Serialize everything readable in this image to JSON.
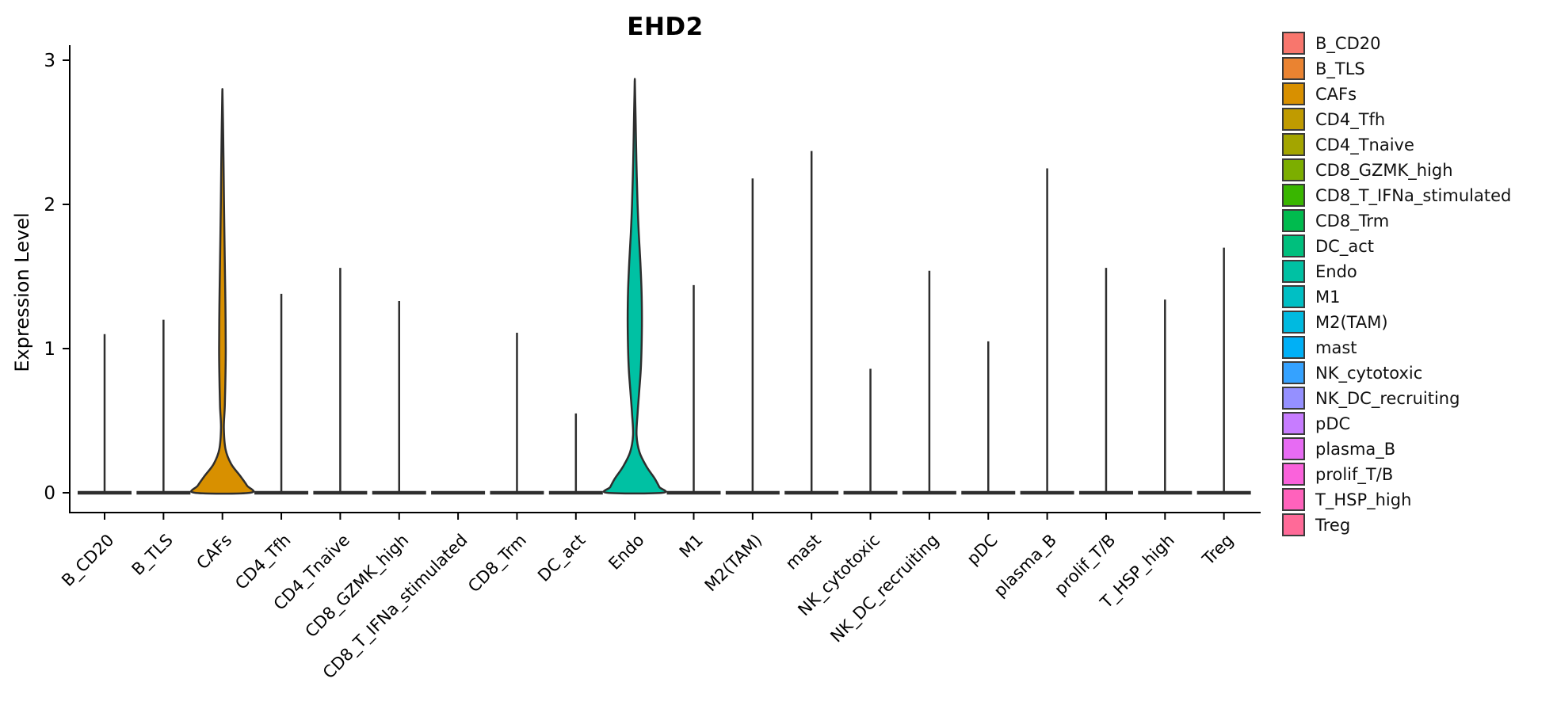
{
  "figure": {
    "title": "EHD2",
    "background": "#ffffff",
    "axis_color": "#000000",
    "violin_stroke_color": "#2e2e2e"
  },
  "chart_data": {
    "type": "violin",
    "title": "EHD2",
    "xlabel": "",
    "ylabel": "Expression Level",
    "ylim": [
      0,
      3
    ],
    "yticks": [
      0,
      1,
      2,
      3
    ],
    "grid": false,
    "legend_position": "right",
    "categories": [
      {
        "name": "B_CD20",
        "color": "#F8766D",
        "max_expression": 1.1,
        "shape": "spike"
      },
      {
        "name": "B_TLS",
        "color": "#EA8331",
        "max_expression": 1.2,
        "shape": "spike"
      },
      {
        "name": "CAFs",
        "color": "#D89000",
        "max_expression": 2.8,
        "shape": "violin",
        "density_profile": [
          [
            2.8,
            0
          ],
          [
            2.55,
            0.8
          ],
          [
            2.3,
            1.4
          ],
          [
            2.0,
            2.0
          ],
          [
            1.6,
            3.0
          ],
          [
            1.3,
            3.8
          ],
          [
            1.0,
            4.2
          ],
          [
            0.8,
            3.8
          ],
          [
            0.6,
            3.0
          ],
          [
            0.45,
            1.8
          ],
          [
            0.3,
            4.0
          ],
          [
            0.2,
            11
          ],
          [
            0.12,
            22
          ],
          [
            0.05,
            31
          ],
          [
            0.0,
            35
          ]
        ]
      },
      {
        "name": "CD4_Tfh",
        "color": "#C09B00",
        "max_expression": 1.38,
        "shape": "spike"
      },
      {
        "name": "CD4_Tnaive",
        "color": "#A3A500",
        "max_expression": 1.56,
        "shape": "spike"
      },
      {
        "name": "CD8_GZMK_high",
        "color": "#7CAE00",
        "max_expression": 1.33,
        "shape": "spike"
      },
      {
        "name": "CD8_T_IFNa_stimulated",
        "color": "#39B600",
        "max_expression": 0.0,
        "shape": "spike"
      },
      {
        "name": "CD8_Trm",
        "color": "#00BB4E",
        "max_expression": 1.11,
        "shape": "spike"
      },
      {
        "name": "DC_act",
        "color": "#00BF7D",
        "max_expression": 0.55,
        "shape": "spike"
      },
      {
        "name": "Endo",
        "color": "#00C1A3",
        "max_expression": 2.87,
        "shape": "violin",
        "density_profile": [
          [
            2.87,
            0
          ],
          [
            2.6,
            1.0
          ],
          [
            2.3,
            2.0
          ],
          [
            2.0,
            3.5
          ],
          [
            1.8,
            5.0
          ],
          [
            1.6,
            7.0
          ],
          [
            1.4,
            8.5
          ],
          [
            1.2,
            9.0
          ],
          [
            1.0,
            8.5
          ],
          [
            0.85,
            7.5
          ],
          [
            0.7,
            5.5
          ],
          [
            0.55,
            3.5
          ],
          [
            0.4,
            2.2
          ],
          [
            0.28,
            6.0
          ],
          [
            0.18,
            15
          ],
          [
            0.1,
            25
          ],
          [
            0.04,
            31
          ],
          [
            0.0,
            35
          ]
        ]
      },
      {
        "name": "M1",
        "color": "#00BFC4",
        "max_expression": 1.44,
        "shape": "spike"
      },
      {
        "name": "M2(TAM)",
        "color": "#00BAE0",
        "max_expression": 2.18,
        "shape": "spike"
      },
      {
        "name": "mast",
        "color": "#00B0F6",
        "max_expression": 2.37,
        "shape": "spike"
      },
      {
        "name": "NK_cytotoxic",
        "color": "#35A2FF",
        "max_expression": 0.86,
        "shape": "spike"
      },
      {
        "name": "NK_DC_recruiting",
        "color": "#9590FF",
        "max_expression": 1.54,
        "shape": "spike"
      },
      {
        "name": "pDC",
        "color": "#C77CFF",
        "max_expression": 1.05,
        "shape": "spike"
      },
      {
        "name": "plasma_B",
        "color": "#E76BF3",
        "max_expression": 2.25,
        "shape": "spike"
      },
      {
        "name": "prolif_T/B",
        "color": "#FA62DB",
        "max_expression": 1.56,
        "shape": "spike"
      },
      {
        "name": "T_HSP_high",
        "color": "#FF62BC",
        "max_expression": 1.34,
        "shape": "spike"
      },
      {
        "name": "Treg",
        "color": "#FF6A98",
        "max_expression": 1.7,
        "shape": "spike"
      }
    ]
  }
}
